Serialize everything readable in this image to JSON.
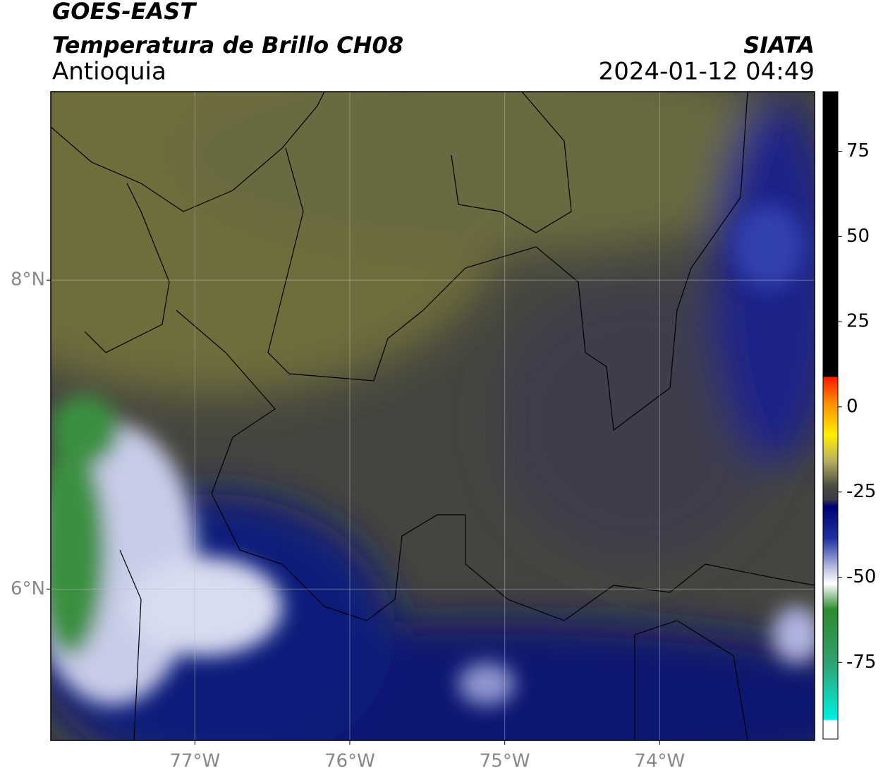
{
  "map": {
    "title": "GOES-EAST",
    "subtitle": "Temperatura de Brillo CH08",
    "source": "SIATA",
    "region": "Antioquia",
    "datetime": "2024-01-12 04:49",
    "xlim": [
      -77.93,
      -73.0
    ],
    "ylim": [
      5.02,
      9.22
    ],
    "xticks": [
      {
        "value": -77,
        "label": "77°W"
      },
      {
        "value": -76,
        "label": "76°W"
      },
      {
        "value": -75,
        "label": "75°W"
      },
      {
        "value": -74,
        "label": "74°W"
      }
    ],
    "yticks": [
      {
        "value": 8,
        "label": "8°N"
      },
      {
        "value": 6,
        "label": "6°N"
      }
    ],
    "grid": true,
    "colorbar": {
      "lim": [
        -97.5,
        92.5
      ],
      "ticks": [
        75,
        50,
        25,
        0,
        -25,
        -50,
        -75
      ]
    }
  }
}
